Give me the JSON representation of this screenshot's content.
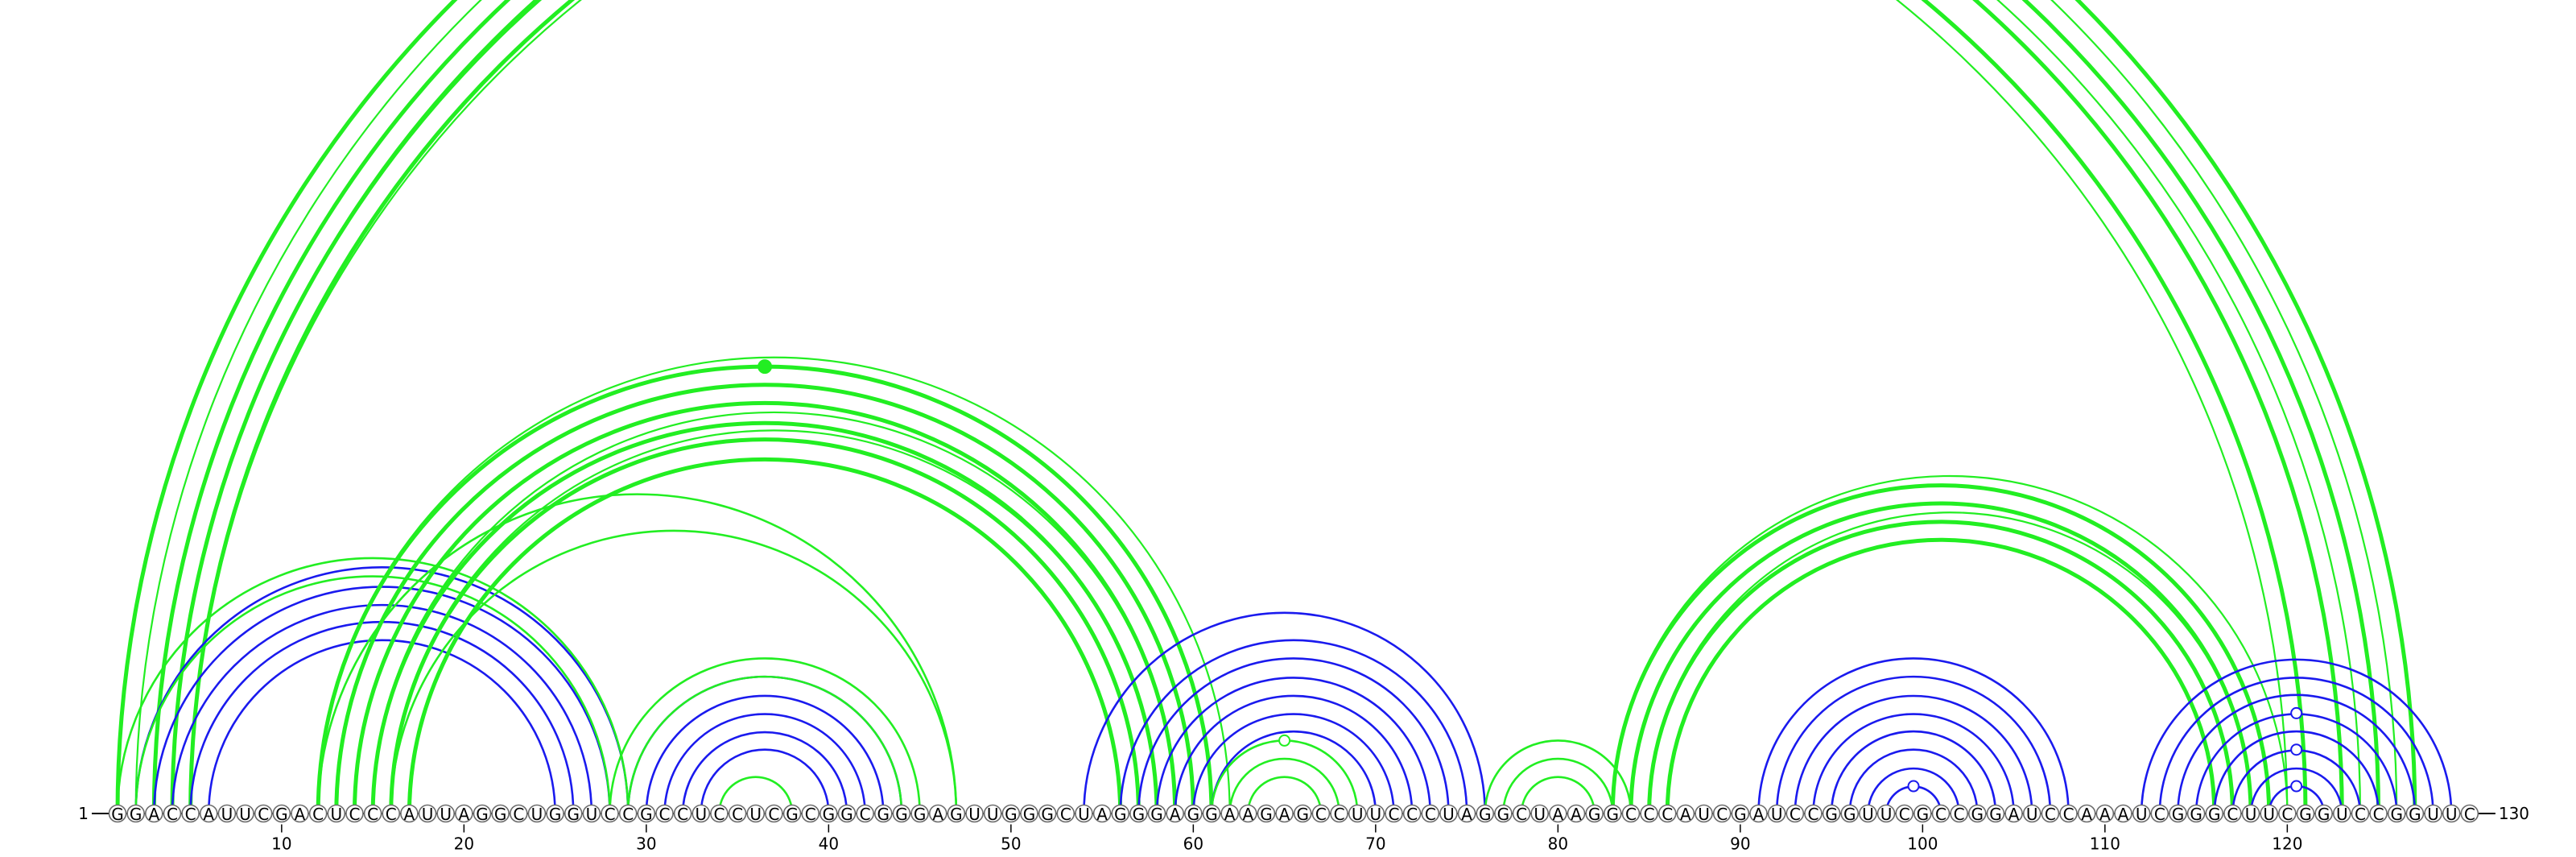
{
  "sequence": "GGACCAUUCGACUCCCAUUAGGCUGGUCCGCCUCCUCGCGGCGGGAGUUGGGCUAGGGAGGAAGAGCCUUCCCUAGGCUAAGGCCCAUCGAUCCGGUUCGCCGGAUCCAAAUCGGGCUUCGGUCCGGUUC",
  "start_label": "1",
  "end_label": "130",
  "ticks": [
    "10",
    "20",
    "30",
    "40",
    "50",
    "60",
    "70",
    "80",
    "90",
    "100",
    "110",
    "120"
  ],
  "colors": {
    "blue": "#1a1aee",
    "green": "#22ee22",
    "backbone": "#000000"
  },
  "arc_groups": [
    {
      "color": "green",
      "weight": "heavy",
      "pairs": [
        [
          1,
          127
        ],
        [
          3,
          125
        ],
        [
          4,
          123
        ],
        [
          5,
          121
        ]
      ]
    },
    {
      "color": "green",
      "weight": "thin",
      "pairs": [
        [
          2,
          126
        ],
        [
          4,
          124
        ],
        [
          5,
          120
        ]
      ]
    },
    {
      "color": "blue",
      "weight": "normal",
      "pairs": [
        [
          2,
          29
        ],
        [
          3,
          28
        ],
        [
          4,
          27
        ],
        [
          5,
          26
        ],
        [
          6,
          25
        ]
      ]
    },
    {
      "color": "green",
      "weight": "normal",
      "pairs": [
        [
          1,
          29
        ],
        [
          2,
          28
        ]
      ]
    },
    {
      "color": "green",
      "weight": "heavy",
      "pairs": [
        [
          12,
          61
        ],
        [
          13,
          60
        ],
        [
          14,
          59
        ],
        [
          15,
          58
        ],
        [
          16,
          57
        ],
        [
          17,
          56
        ]
      ]
    },
    {
      "color": "green",
      "weight": "thin",
      "pairs": [
        [
          12,
          62
        ],
        [
          15,
          59
        ],
        [
          16,
          58
        ]
      ]
    },
    {
      "color": "green",
      "weight": "normal",
      "pairs": [
        [
          12,
          47
        ],
        [
          16,
          47
        ]
      ]
    },
    {
      "color": "blue",
      "weight": "normal",
      "pairs": [
        [
          29,
          44
        ],
        [
          30,
          43
        ],
        [
          31,
          42
        ],
        [
          32,
          41
        ],
        [
          33,
          40
        ]
      ]
    },
    {
      "color": "green",
      "weight": "normal",
      "pairs": [
        [
          28,
          45
        ],
        [
          29,
          44
        ],
        [
          34,
          38
        ]
      ]
    },
    {
      "color": "blue",
      "weight": "normal",
      "pairs": [
        [
          54,
          76
        ],
        [
          56,
          75
        ],
        [
          57,
          74
        ],
        [
          58,
          73
        ],
        [
          59,
          72
        ],
        [
          60,
          71
        ],
        [
          61,
          70
        ]
      ]
    },
    {
      "color": "green",
      "weight": "normal",
      "pairs": [
        [
          61,
          69
        ],
        [
          62,
          68
        ],
        [
          63,
          67
        ]
      ]
    },
    {
      "color": "green",
      "weight": "normal",
      "pairs": [
        [
          76,
          84
        ],
        [
          77,
          83
        ],
        [
          78,
          82
        ]
      ]
    },
    {
      "color": "green",
      "weight": "heavy",
      "pairs": [
        [
          83,
          119
        ],
        [
          84,
          118
        ],
        [
          85,
          117
        ],
        [
          86,
          116
        ]
      ]
    },
    {
      "color": "green",
      "weight": "thin",
      "pairs": [
        [
          83,
          120
        ],
        [
          85,
          118
        ]
      ]
    },
    {
      "color": "blue",
      "weight": "normal",
      "pairs": [
        [
          91,
          108
        ],
        [
          92,
          107
        ],
        [
          93,
          106
        ],
        [
          94,
          105
        ],
        [
          95,
          104
        ],
        [
          96,
          103
        ],
        [
          97,
          102
        ],
        [
          98,
          101
        ]
      ]
    },
    {
      "color": "blue",
      "weight": "normal",
      "pairs": [
        [
          112,
          129
        ],
        [
          113,
          128
        ],
        [
          114,
          127
        ],
        [
          115,
          126
        ],
        [
          116,
          125
        ],
        [
          117,
          124
        ],
        [
          118,
          123
        ],
        [
          119,
          122
        ]
      ]
    }
  ],
  "markers": [
    {
      "color": "green",
      "filled": true,
      "pair": [
        12,
        61
      ]
    },
    {
      "color": "green",
      "filled": false,
      "pair": [
        61,
        69
      ]
    },
    {
      "color": "blue",
      "filled": false,
      "pair": [
        98,
        101
      ]
    },
    {
      "color": "blue",
      "filled": false,
      "pair": [
        119,
        122
      ]
    },
    {
      "color": "blue",
      "filled": false,
      "pair": [
        117,
        124
      ]
    },
    {
      "color": "blue",
      "filled": false,
      "pair": [
        115,
        126
      ]
    }
  ]
}
